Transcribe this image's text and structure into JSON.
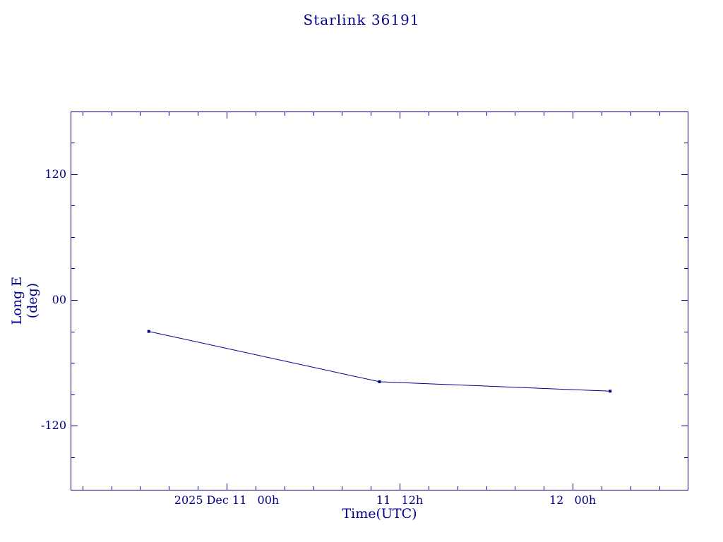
{
  "colors": {
    "accent": "#00008b",
    "background": "#ffffff"
  },
  "chart_data": {
    "type": "line",
    "title": "Starlink 36191",
    "xlabel": "Time(UTC)",
    "ylabel": "Long E (deg)",
    "x_unit": "hours relative to 2025 Dec 11 00h UTC",
    "xlim_hours": [
      -10.8,
      32.1
    ],
    "ylim": [
      -180,
      180
    ],
    "grid": false,
    "legend": "none",
    "marker": "square",
    "line_color": "#00008b",
    "y_ticks": [
      {
        "value": 120,
        "label": "120"
      },
      {
        "value": 0,
        "label": "00"
      },
      {
        "value": -120,
        "label": "-120"
      }
    ],
    "x_ticks": [
      {
        "hours": 0,
        "label": "2025 Dec 11   00h"
      },
      {
        "hours": 12,
        "label": "11   12h"
      },
      {
        "hours": 24,
        "label": "12   00h"
      }
    ],
    "minor_tick_hours": 2,
    "minor_tick_deg": 30,
    "series": [
      {
        "name": "Long E",
        "points": [
          {
            "t_hours": -5.4,
            "deg": -30
          },
          {
            "t_hours": 10.6,
            "deg": -78
          },
          {
            "t_hours": 26.6,
            "deg": -87
          }
        ]
      }
    ]
  }
}
